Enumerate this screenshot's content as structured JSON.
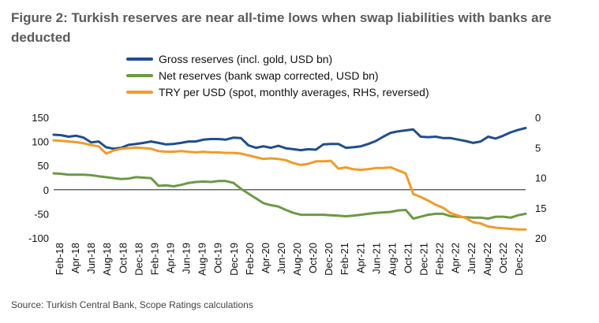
{
  "title": "Figure 2: Turkish reserves are near all-time lows when swap liabilities with banks are deducted",
  "source": "Source: Turkish Central Bank, Scope Ratings calculations",
  "chart_data": {
    "type": "line",
    "x_labels": [
      "Feb-18",
      "Apr-18",
      "Jun-18",
      "Aug-18",
      "Oct-18",
      "Dec-18",
      "Feb-19",
      "Apr-19",
      "Jun-19",
      "Aug-19",
      "Oct-19",
      "Dec-19",
      "Feb-20",
      "Apr-20",
      "Jun-20",
      "Aug-20",
      "Oct-20",
      "Dec-20",
      "Feb-21",
      "Apr-21",
      "Jun-21",
      "Aug-21",
      "Oct-21",
      "Dec-21",
      "Feb-22",
      "Apr-22",
      "Jun-22",
      "Aug-22",
      "Oct-22",
      "Dec-22"
    ],
    "y_left": {
      "min": -100,
      "max": 150,
      "ticks": [
        150,
        100,
        50,
        0,
        -50,
        -100
      ]
    },
    "y_right": {
      "min": 0,
      "max": 20,
      "reversed": true,
      "ticks": [
        0,
        5,
        10,
        15,
        20
      ]
    },
    "series": [
      {
        "name": "Gross reserves (incl. gold, USD bn)",
        "color": "#1f4e8c",
        "axis": "left",
        "values": [
          114,
          113,
          110,
          112,
          108,
          98,
          100,
          88,
          85,
          87,
          93,
          95,
          97,
          100,
          97,
          94,
          95,
          97,
          100,
          100,
          104,
          105,
          105,
          104,
          108,
          107,
          92,
          87,
          90,
          87,
          91,
          86,
          84,
          82,
          84,
          83,
          94,
          95,
          95,
          87,
          88,
          90,
          95,
          101,
          110,
          118,
          121,
          123,
          125,
          110,
          109,
          110,
          107,
          107,
          104,
          101,
          97,
          100,
          110,
          106,
          112,
          119,
          124,
          128
        ]
      },
      {
        "name": "Net reserves (bank swap corrected, USD bn)",
        "color": "#6a9a45",
        "axis": "left",
        "values": [
          34,
          33,
          31,
          31,
          31,
          30,
          28,
          26,
          24,
          22,
          23,
          26,
          25,
          24,
          8,
          9,
          7,
          10,
          14,
          16,
          17,
          16,
          18,
          18,
          14,
          2,
          -8,
          -18,
          -28,
          -32,
          -35,
          -42,
          -48,
          -52,
          -52,
          -52,
          -52,
          -53,
          -54,
          -55,
          -54,
          -52,
          -50,
          -48,
          -47,
          -46,
          -43,
          -42,
          -60,
          -56,
          -52,
          -50,
          -50,
          -55,
          -56,
          -57,
          -58,
          -58,
          -60,
          -56,
          -56,
          -58,
          -53,
          -50
        ]
      },
      {
        "name": "TRY per USD (spot, monthly averages, RHS, reversed)",
        "color": "#f39a2a",
        "axis": "right",
        "values": [
          3.8,
          3.9,
          4.0,
          4.1,
          4.3,
          4.6,
          4.8,
          6.0,
          5.5,
          5.2,
          5.1,
          5.0,
          5.1,
          5.2,
          5.6,
          5.7,
          5.7,
          5.6,
          5.7,
          5.8,
          5.7,
          5.8,
          5.8,
          5.9,
          5.9,
          6.0,
          6.3,
          6.6,
          6.9,
          6.8,
          6.9,
          7.1,
          7.6,
          7.9,
          7.7,
          7.3,
          7.3,
          7.2,
          8.5,
          8.3,
          8.6,
          8.7,
          8.6,
          8.4,
          8.4,
          8.3,
          8.8,
          9.3,
          12.7,
          13.2,
          13.8,
          14.5,
          15.0,
          15.9,
          16.3,
          16.7,
          17.4,
          17.6,
          18.1,
          18.3,
          18.4,
          18.5,
          18.6,
          18.6
        ]
      }
    ],
    "zero_line": true
  }
}
